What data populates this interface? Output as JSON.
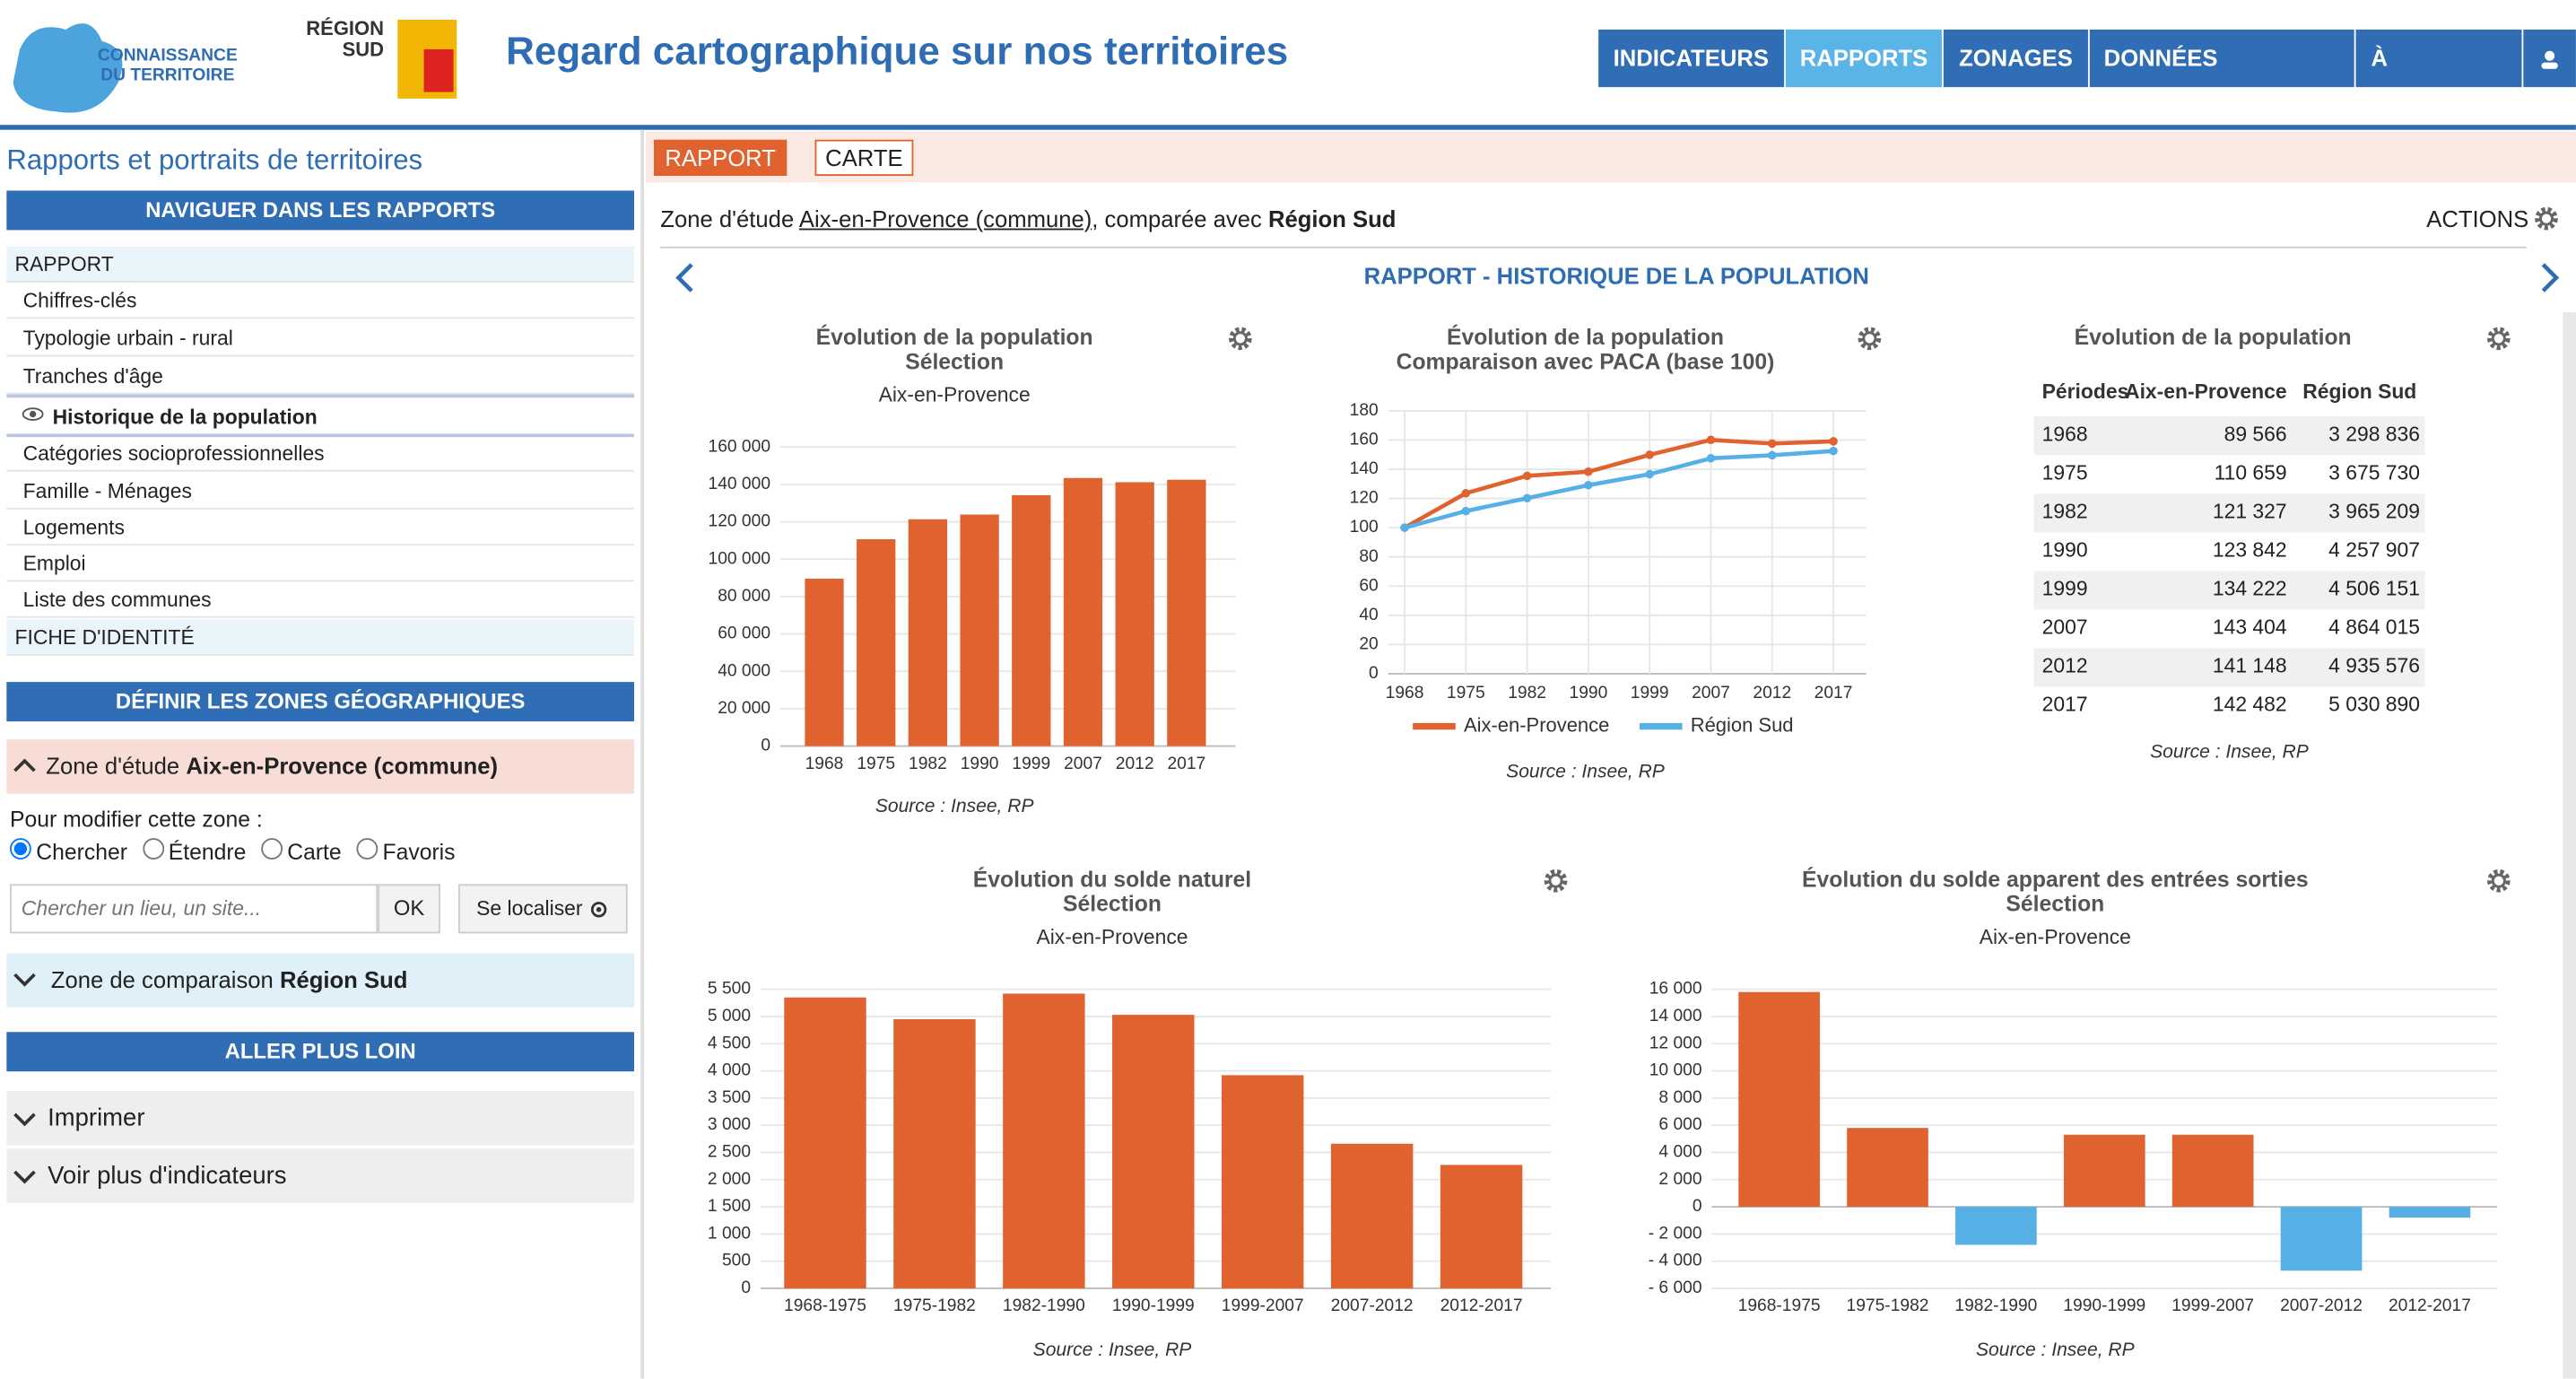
{
  "header": {
    "logo_line1": "CONNAISSANCE",
    "logo_line2": "DU TERRITOIRE",
    "region_line1": "RÉGION",
    "region_line2": "SUD",
    "title": "Regard cartographique sur nos territoires",
    "nav": [
      "INDICATEURS",
      "RAPPORTS",
      "ZONAGES",
      "DONNÉES EXTERNES",
      "À PROPOS..."
    ]
  },
  "sidebar": {
    "title": "Rapports et portraits de territoires",
    "nav_heading": "NAVIGUER DANS LES RAPPORTS",
    "nav_items": [
      "RAPPORT",
      "Chiffres-clés",
      "Typologie urbain - rural",
      "Tranches d'âge",
      "Historique de la population",
      "Catégories socioprofessionnelles",
      "Famille - Ménages",
      "Logements",
      "Emploi",
      "Liste des communes",
      "FICHE D'IDENTITÉ"
    ],
    "zones_heading": "DÉFINIR LES ZONES GÉOGRAPHIQUES",
    "study_zone_label": "Zone d'étude",
    "study_zone_name": "Aix-en-Provence (commune)",
    "modify_prompt": "Pour modifier cette zone :",
    "modes": [
      "Chercher",
      "Étendre",
      "Carte",
      "Favoris"
    ],
    "search_placeholder": "Chercher un lieu, un site...",
    "ok_button": "OK",
    "locate_button": "Se localiser",
    "comparison_zone_label": "Zone de comparaison",
    "comparison_zone_name": "Région Sud",
    "further_heading": "ALLER PLUS LOIN",
    "print": "Imprimer",
    "more_indicators": "Voir plus d'indicateurs"
  },
  "main": {
    "tabs": [
      "RAPPORT",
      "CARTE"
    ],
    "zone_prefix": "Zone d'étude",
    "zone_name": "Aix-en-Provence (commune)",
    "zone_middle": ", comparée avec",
    "comparison_name": "Région Sud",
    "actions": "ACTIONS",
    "report_title": "RAPPORT - HISTORIQUE DE LA POPULATION"
  },
  "population_table": {
    "title": "Évolution de la population",
    "columns": [
      "Périodes",
      "Aix-en-Provence",
      "Région Sud"
    ],
    "source": "Source : Insee, RP",
    "rows": [
      [
        "1968",
        "89 566",
        "3 298 836"
      ],
      [
        "1975",
        "110 659",
        "3 675 730"
      ],
      [
        "1982",
        "121 327",
        "3 965 209"
      ],
      [
        "1990",
        "123 842",
        "4 257 907"
      ],
      [
        "1999",
        "134 222",
        "4 506 151"
      ],
      [
        "2007",
        "143 404",
        "4 864 015"
      ],
      [
        "2012",
        "141 148",
        "4 935 576"
      ],
      [
        "2017",
        "142 482",
        "5 030 890"
      ]
    ]
  },
  "chart_data": [
    {
      "type": "bar",
      "title": "Évolution de la population",
      "subtitle": "Sélection",
      "zone": "Aix-en-Provence",
      "source": "Source : Insee, RP",
      "categories": [
        "1968",
        "1975",
        "1982",
        "1990",
        "1999",
        "2007",
        "2012",
        "2017"
      ],
      "values": [
        89566,
        110659,
        121327,
        123842,
        134222,
        143404,
        141148,
        142482
      ],
      "color": "#e0622f",
      "ylim": [
        0,
        160000
      ],
      "yticks": [
        0,
        {
          "value": 20000,
          "label": "20 000"
        },
        {
          "value": 40000,
          "label": "40 000"
        },
        {
          "value": 60000,
          "label": "60 000"
        },
        {
          "value": 80000,
          "label": "80 000"
        },
        {
          "value": 100000,
          "label": "100 000"
        },
        {
          "value": 120000,
          "label": "120 000"
        },
        {
          "value": 140000,
          "label": "140 000"
        },
        {
          "value": 160000,
          "label": "160 000"
        }
      ],
      "grid": true
    },
    {
      "type": "line",
      "title": "Évolution de la population",
      "subtitle": "Comparaison avec PACA (base 100)",
      "source": "Source : Insee, RP",
      "categories": [
        "1968",
        "1975",
        "1982",
        "1990",
        "1999",
        "2007",
        "2012",
        "2017"
      ],
      "series": [
        {
          "name": "Aix-en-Provence",
          "color": "#e0622f",
          "values": [
            100,
            123.6,
            135.5,
            138.3,
            149.9,
            160.1,
            157.6,
            159.1
          ]
        },
        {
          "name": "Région Sud",
          "color": "#56b0e6",
          "values": [
            100,
            111.4,
            120.2,
            129.1,
            136.6,
            147.5,
            149.6,
            152.5
          ]
        }
      ],
      "ylim": [
        0,
        180
      ],
      "yticks": [
        0,
        20,
        40,
        60,
        80,
        100,
        120,
        140,
        160,
        180
      ],
      "grid": true,
      "legend": "bottom"
    },
    {
      "type": "bar",
      "title": "Évolution du solde naturel",
      "subtitle": "Sélection",
      "zone": "Aix-en-Provence",
      "source": "Source : Insee, RP",
      "categories": [
        "1968-1975",
        "1975-1982",
        "1982-1990",
        "1990-1999",
        "1999-2007",
        "2007-2012",
        "2012-2017"
      ],
      "values": [
        5350,
        4950,
        5420,
        5030,
        3920,
        2660,
        2270
      ],
      "color": "#e0622f",
      "ylim": [
        0,
        5500
      ],
      "yticks": [
        0,
        500,
        {
          "value": 1000,
          "label": "1 000"
        },
        {
          "value": 1500,
          "label": "1 500"
        },
        {
          "value": 2000,
          "label": "2 000"
        },
        {
          "value": 2500,
          "label": "2 500"
        },
        {
          "value": 3000,
          "label": "3 000"
        },
        {
          "value": 3500,
          "label": "3 500"
        },
        {
          "value": 4000,
          "label": "4 000"
        },
        {
          "value": 4500,
          "label": "4 500"
        },
        {
          "value": 5000,
          "label": "5 000"
        },
        {
          "value": 5500,
          "label": "5 500"
        }
      ],
      "grid": true
    },
    {
      "type": "bar",
      "title": "Évolution du solde apparent des entrées sorties",
      "subtitle": "Sélection",
      "zone": "Aix-en-Provence",
      "source": "Source : Insee, RP",
      "categories": [
        "1968-1975",
        "1975-1982",
        "1982-1990",
        "1990-1999",
        "1999-2007",
        "2007-2012",
        "2012-2017"
      ],
      "values": [
        15800,
        5800,
        -2800,
        5300,
        5300,
        -4700,
        -800
      ],
      "color": "#e0622f",
      "negative_color": "#56b0e6",
      "ylim": [
        -6000,
        16000
      ],
      "yticks": [
        {
          "value": -6000,
          "label": "- 6 000"
        },
        {
          "value": -4000,
          "label": "- 4 000"
        },
        {
          "value": -2000,
          "label": "- 2 000"
        },
        0,
        {
          "value": 2000,
          "label": "2 000"
        },
        {
          "value": 4000,
          "label": "4 000"
        },
        {
          "value": 6000,
          "label": "6 000"
        },
        {
          "value": 8000,
          "label": "8 000"
        },
        {
          "value": 10000,
          "label": "10 000"
        },
        {
          "value": 12000,
          "label": "12 000"
        },
        {
          "value": 14000,
          "label": "14 000"
        },
        {
          "value": 16000,
          "label": "16 000"
        }
      ],
      "grid": true
    }
  ]
}
